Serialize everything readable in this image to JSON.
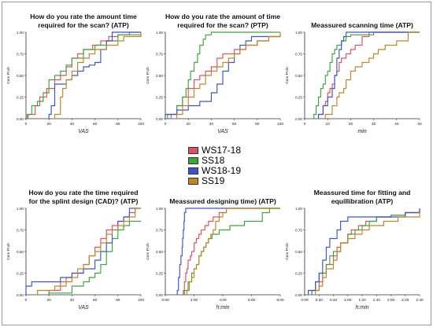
{
  "colors": {
    "WS17-18": "#e05060",
    "SS18": "#3aa63a",
    "WS18-19": "#3b55cc",
    "SS19": "#c08526",
    "axis": "#333333"
  },
  "legend": {
    "placement": "center",
    "items": [
      {
        "name": "WS17-18",
        "color": "#e05060"
      },
      {
        "name": "SS18",
        "color": "#3aa63a"
      },
      {
        "name": "WS18-19",
        "color": "#3b55cc"
      },
      {
        "name": "SS19",
        "color": "#c08526"
      }
    ]
  },
  "chart_data": [
    {
      "type": "line",
      "title_lines": [
        "How do you rate the amount time",
        "required for the scan? (ATP)"
      ],
      "xlabel": "VAS",
      "ylabel": "Cum Prob",
      "xlim": [
        0,
        100
      ],
      "ylim": [
        0,
        1
      ],
      "xticks": [
        0,
        20,
        40,
        60,
        80,
        100
      ],
      "xticklabels": [
        "0",
        "20",
        "40",
        "60",
        "80",
        "100"
      ],
      "yticks": [
        0,
        0.25,
        0.5,
        0.75,
        1
      ],
      "yticklabels": [
        "0.00",
        "0.25",
        "0.50",
        "0.75",
        "1.00"
      ],
      "series": [
        {
          "name": "WS17-18",
          "x": [
            2,
            8,
            12,
            18,
            25,
            30,
            35,
            40,
            45,
            50,
            58,
            65,
            72,
            80,
            90,
            100
          ],
          "y": [
            0.05,
            0.15,
            0.25,
            0.35,
            0.45,
            0.5,
            0.6,
            0.7,
            0.75,
            0.8,
            0.85,
            0.9,
            0.95,
            0.97,
            1.0,
            1.0
          ]
        },
        {
          "name": "SS18",
          "x": [
            1,
            5,
            10,
            15,
            20,
            25,
            30,
            35,
            40,
            50,
            60,
            70,
            80,
            100
          ],
          "y": [
            0.05,
            0.15,
            0.2,
            0.3,
            0.45,
            0.5,
            0.55,
            0.62,
            0.7,
            0.8,
            0.85,
            0.9,
            0.97,
            1.0
          ]
        },
        {
          "name": "WS18-19",
          "x": [
            20,
            22,
            25,
            35,
            40,
            45,
            50,
            55,
            60,
            65,
            70,
            75,
            80,
            100
          ],
          "y": [
            0.05,
            0.15,
            0.4,
            0.45,
            0.5,
            0.55,
            0.6,
            0.62,
            0.65,
            0.8,
            0.9,
            1.0,
            1.0,
            1.0
          ]
        },
        {
          "name": "SS19",
          "x": [
            25,
            30,
            32,
            35,
            40,
            45,
            50,
            55,
            60,
            70,
            80,
            85,
            100
          ],
          "y": [
            0.05,
            0.25,
            0.35,
            0.45,
            0.55,
            0.65,
            0.7,
            0.75,
            0.8,
            0.85,
            0.9,
            0.95,
            1.0
          ]
        }
      ]
    },
    {
      "type": "line",
      "title_lines": [
        "How do you rate the amount of time",
        "required for the scan? (PTP)"
      ],
      "xlabel": "VAS",
      "ylabel": "Cum Prob",
      "xlim": [
        0,
        100
      ],
      "ylim": [
        0,
        1
      ],
      "xticks": [
        0,
        20,
        40,
        60,
        80,
        100
      ],
      "xticklabels": [
        "0",
        "20",
        "40",
        "60",
        "80",
        "100"
      ],
      "yticks": [
        0,
        0.25,
        0.5,
        0.75,
        1
      ],
      "yticklabels": [
        "0.00",
        "0.25",
        "0.50",
        "0.75",
        "1.00"
      ],
      "series": [
        {
          "name": "WS17-18",
          "x": [
            5,
            10,
            15,
            20,
            25,
            30,
            35,
            40,
            45,
            50,
            60,
            70,
            80,
            90,
            100
          ],
          "y": [
            0.05,
            0.15,
            0.25,
            0.35,
            0.45,
            0.5,
            0.55,
            0.6,
            0.7,
            0.75,
            0.8,
            0.85,
            0.9,
            0.95,
            1.0
          ]
        },
        {
          "name": "SS18",
          "x": [
            2,
            10,
            15,
            18,
            20,
            22,
            25,
            28,
            30,
            33,
            35,
            40
          ],
          "y": [
            0.05,
            0.15,
            0.25,
            0.35,
            0.45,
            0.55,
            0.65,
            0.75,
            0.85,
            0.92,
            0.97,
            1.0
          ]
        },
        {
          "name": "WS18-19",
          "x": [
            0,
            10,
            20,
            30,
            40,
            45,
            50,
            55,
            60,
            65,
            70,
            75,
            100
          ],
          "y": [
            0.05,
            0.1,
            0.15,
            0.2,
            0.3,
            0.4,
            0.55,
            0.65,
            0.75,
            0.85,
            0.9,
            0.95,
            0.95
          ]
        },
        {
          "name": "SS19",
          "x": [
            10,
            15,
            20,
            25,
            30,
            35,
            40,
            45,
            50,
            55,
            60,
            65,
            70,
            80,
            90,
            100
          ],
          "y": [
            0.05,
            0.15,
            0.25,
            0.35,
            0.4,
            0.5,
            0.55,
            0.6,
            0.65,
            0.7,
            0.75,
            0.8,
            0.85,
            0.9,
            0.95,
            1.0
          ]
        }
      ]
    },
    {
      "type": "line",
      "title_lines": [
        "Meassured scanning time (ATP)"
      ],
      "xlabel": "min",
      "ylabel": "Cum Prob",
      "xlim": [
        0,
        50
      ],
      "ylim": [
        0,
        1
      ],
      "xticks": [
        0,
        10,
        20,
        30,
        40,
        50
      ],
      "xticklabels": [
        "0",
        "10",
        "20",
        "30",
        "40",
        "50"
      ],
      "yticks": [
        0,
        0.25,
        0.5,
        0.75,
        1
      ],
      "yticklabels": [
        "0.00",
        "0.25",
        "0.50",
        "0.75",
        "1.00"
      ],
      "series": [
        {
          "name": "WS17-18",
          "x": [
            6,
            8,
            9,
            10,
            11,
            12,
            13,
            14,
            15,
            16,
            18,
            20,
            22,
            25,
            28
          ],
          "y": [
            0.05,
            0.15,
            0.2,
            0.3,
            0.35,
            0.4,
            0.5,
            0.55,
            0.65,
            0.7,
            0.75,
            0.8,
            0.85,
            0.95,
            1.0
          ]
        },
        {
          "name": "SS18",
          "x": [
            4,
            5,
            6,
            7,
            8,
            9,
            10,
            11,
            12,
            13,
            14,
            16,
            18,
            20,
            30
          ],
          "y": [
            0.05,
            0.15,
            0.25,
            0.35,
            0.4,
            0.5,
            0.55,
            0.65,
            0.75,
            0.8,
            0.85,
            0.9,
            0.95,
            0.97,
            1.0
          ]
        },
        {
          "name": "WS18-19",
          "x": [
            6,
            8,
            10,
            12,
            13,
            14,
            15,
            16,
            17,
            18,
            20,
            22
          ],
          "y": [
            0.05,
            0.15,
            0.25,
            0.35,
            0.5,
            0.7,
            0.8,
            0.9,
            0.95,
            1.0,
            1.0,
            1.0
          ]
        },
        {
          "name": "SS19",
          "x": [
            9,
            12,
            14,
            15,
            17,
            18,
            20,
            22,
            25,
            28,
            30,
            32,
            35,
            40,
            45
          ],
          "y": [
            0.05,
            0.15,
            0.25,
            0.3,
            0.35,
            0.45,
            0.55,
            0.6,
            0.65,
            0.7,
            0.75,
            0.8,
            0.85,
            0.9,
            1.0
          ]
        }
      ]
    },
    {
      "type": "line",
      "title_lines": [
        "How do you rate the time required",
        "for the splint design (CAD)? (ATP)"
      ],
      "xlabel": "VAS",
      "ylabel": "Cum Prob",
      "xlim": [
        0,
        100
      ],
      "ylim": [
        0,
        1
      ],
      "xticks": [
        0,
        20,
        40,
        60,
        80,
        100
      ],
      "xticklabels": [
        "0",
        "20",
        "40",
        "60",
        "80",
        "100"
      ],
      "yticks": [
        0,
        0.25,
        0.5,
        0.75,
        1
      ],
      "yticklabels": [
        "0.00",
        "0.25",
        "0.50",
        "0.75",
        "1.00"
      ],
      "series": [
        {
          "name": "WS17-18",
          "x": [
            20,
            30,
            35,
            40,
            50,
            55,
            60,
            65,
            70,
            75,
            80,
            85,
            90,
            95
          ],
          "y": [
            0.05,
            0.15,
            0.2,
            0.25,
            0.35,
            0.45,
            0.55,
            0.65,
            0.75,
            0.8,
            0.85,
            0.9,
            0.95,
            1.0
          ]
        },
        {
          "name": "SS18",
          "x": [
            20,
            40,
            50,
            55,
            60,
            65,
            70,
            75,
            80,
            85,
            90,
            100
          ],
          "y": [
            0.02,
            0.1,
            0.15,
            0.2,
            0.25,
            0.35,
            0.5,
            0.65,
            0.75,
            0.8,
            0.85,
            0.85
          ]
        },
        {
          "name": "WS18-19",
          "x": [
            0,
            5,
            30,
            40,
            50,
            60,
            65,
            70,
            75,
            80,
            85,
            90
          ],
          "y": [
            0.1,
            0.15,
            0.2,
            0.25,
            0.3,
            0.4,
            0.5,
            0.6,
            0.75,
            0.85,
            0.9,
            1.0
          ]
        },
        {
          "name": "SS19",
          "x": [
            10,
            25,
            35,
            40,
            45,
            50,
            55,
            60,
            65,
            70,
            75,
            80,
            85,
            90,
            95
          ],
          "y": [
            0.05,
            0.1,
            0.15,
            0.2,
            0.3,
            0.35,
            0.45,
            0.5,
            0.6,
            0.7,
            0.75,
            0.8,
            0.85,
            0.9,
            1.0
          ]
        }
      ]
    },
    {
      "type": "line",
      "title_lines": [
        "Meassured designing time) (ATP)"
      ],
      "xlabel": "h:min",
      "ylabel": "Cum Prob",
      "xlim": [
        "0:00",
        "8:00"
      ],
      "ylim": [
        0,
        1
      ],
      "xticks": [
        "0:00",
        "2:00",
        "4:00",
        "6:00",
        "8:00"
      ],
      "xticklabels": [
        "0:00",
        "2:00",
        "4:00",
        "6:00",
        "8:00"
      ],
      "yticks": [
        0,
        0.25,
        0.5,
        0.75,
        1
      ],
      "yticklabels": [
        "0.00",
        "0.25",
        "0.50",
        "0.75",
        "1.00"
      ],
      "series": [
        {
          "name": "WS17-18",
          "x": [
            "1:15",
            "1:20",
            "1:25",
            "1:30",
            "1:35",
            "1:45",
            "1:50",
            "2:00",
            "2:10",
            "2:20",
            "2:30",
            "2:45",
            "3:00",
            "3:20",
            "3:45",
            "4:15"
          ],
          "y": [
            0.05,
            0.15,
            0.25,
            0.3,
            0.4,
            0.45,
            0.5,
            0.6,
            0.65,
            0.7,
            0.75,
            0.8,
            0.85,
            0.9,
            0.95,
            1.0
          ]
        },
        {
          "name": "SS18",
          "x": [
            "1:20",
            "1:35",
            "1:50",
            "2:00",
            "2:10",
            "2:20",
            "2:30",
            "2:40",
            "2:50",
            "3:00",
            "3:15",
            "3:45",
            "4:30",
            "5:30",
            "6:45",
            "7:15"
          ],
          "y": [
            0.05,
            0.15,
            0.25,
            0.3,
            0.35,
            0.45,
            0.5,
            0.55,
            0.6,
            0.65,
            0.7,
            0.75,
            0.8,
            0.85,
            0.95,
            1.0
          ]
        },
        {
          "name": "WS18-19",
          "x": [
            "0:50",
            "0:55",
            "1:00",
            "1:05",
            "1:10",
            "1:12",
            "1:15",
            "1:18",
            "1:20",
            "1:25"
          ],
          "y": [
            0.05,
            0.2,
            0.35,
            0.45,
            0.55,
            0.65,
            0.75,
            0.85,
            0.95,
            1.0
          ]
        },
        {
          "name": "SS19",
          "x": [
            "1:30",
            "1:40",
            "1:50",
            "2:00",
            "2:10",
            "2:20",
            "2:30",
            "2:40",
            "2:50",
            "3:00",
            "3:10",
            "3:20",
            "3:30",
            "3:45",
            "4:00",
            "4:15"
          ],
          "y": [
            0.05,
            0.15,
            0.2,
            0.3,
            0.35,
            0.45,
            0.5,
            0.55,
            0.6,
            0.65,
            0.7,
            0.75,
            0.85,
            0.9,
            0.95,
            1.0
          ]
        }
      ]
    },
    {
      "type": "line",
      "title_lines": [
        "Meassured time for fitting and",
        "equillibration (ATP)"
      ],
      "xlabel": "h:min",
      "ylabel": "Cum Prob",
      "xlim": [
        "0:00",
        "2:40"
      ],
      "ylim": [
        0,
        1
      ],
      "xticks": [
        "0:00",
        "0:20",
        "0:40",
        "1:00",
        "1:20",
        "1:40",
        "2:00",
        "2:20",
        "2:40"
      ],
      "xticklabels": [
        "0:00",
        "0:20",
        "0:40",
        "1:00",
        "1:20",
        "1:40",
        "2:00",
        "2:20",
        "2:40"
      ],
      "yticks": [
        0,
        0.25,
        0.5,
        0.75,
        1
      ],
      "yticklabels": [
        "0.00",
        "0.25",
        "0.50",
        "0.75",
        "1.00"
      ],
      "series": [
        {
          "name": "WS17-18",
          "x": [
            "0:10",
            "0:20",
            "0:25",
            "0:30",
            "0:40",
            "0:45",
            "0:50",
            "1:00",
            "1:05",
            "1:15",
            "1:25",
            "1:40",
            "2:00",
            "2:20",
            "2:40"
          ],
          "y": [
            0.05,
            0.15,
            0.25,
            0.35,
            0.45,
            0.55,
            0.6,
            0.7,
            0.75,
            0.8,
            0.85,
            0.9,
            0.92,
            0.95,
            1.0
          ]
        },
        {
          "name": "SS18",
          "x": [
            "0:10",
            "0:15",
            "0:20",
            "0:30",
            "0:35",
            "0:40",
            "0:50",
            "1:00",
            "1:10",
            "1:20",
            "1:30",
            "1:40",
            "2:00",
            "2:20",
            "2:40"
          ],
          "y": [
            0.05,
            0.15,
            0.25,
            0.35,
            0.45,
            0.5,
            0.6,
            0.7,
            0.75,
            0.8,
            0.85,
            0.9,
            0.92,
            0.95,
            1.0
          ]
        },
        {
          "name": "WS18-19",
          "x": [
            "0:05",
            "0:15",
            "0:20",
            "0:25",
            "0:30",
            "0:35",
            "0:45",
            "0:50",
            "1:00",
            "2:20",
            "2:40"
          ],
          "y": [
            0.05,
            0.15,
            0.25,
            0.4,
            0.55,
            0.65,
            0.75,
            0.85,
            0.9,
            0.95,
            1.0
          ]
        },
        {
          "name": "SS19",
          "x": [
            "0:15",
            "0:20",
            "0:25",
            "0:30",
            "0:40",
            "0:45",
            "0:50",
            "1:00",
            "1:10",
            "1:20",
            "1:30",
            "1:50",
            "2:10",
            "2:40"
          ],
          "y": [
            0.05,
            0.1,
            0.2,
            0.3,
            0.4,
            0.5,
            0.6,
            0.65,
            0.7,
            0.75,
            0.8,
            0.85,
            0.9,
            0.95
          ]
        }
      ]
    }
  ]
}
